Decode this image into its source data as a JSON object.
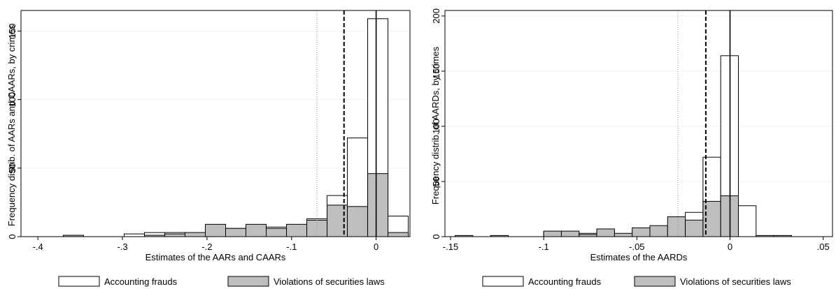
{
  "chart_data": [
    {
      "type": "bar",
      "subtype": "overlaid-histogram",
      "xlabel": "Estimates of the AARs and CAARs",
      "ylabel": "Frequency distrib. of AARs and CAARs, by crimes",
      "xlim": [
        -0.42,
        0.04
      ],
      "ylim": [
        0,
        165
      ],
      "xticks": [
        -0.4,
        -0.3,
        -0.2,
        -0.1,
        0
      ],
      "xtick_labels": [
        "-.4",
        "-.3",
        "-.2",
        "-.1",
        "0"
      ],
      "yticks": [
        0,
        50,
        100,
        150
      ],
      "ytick_labels": [
        "0",
        "50",
        "100",
        "150"
      ],
      "grid": true,
      "legend": "bottom",
      "bin_width": 0.024,
      "series": [
        {
          "name": "Accounting frauds",
          "color": "#ffffff",
          "bins": [
            {
              "x": -0.37,
              "value": 1
            },
            {
              "x": -0.298,
              "value": 2
            },
            {
              "x": -0.274,
              "value": 3
            },
            {
              "x": -0.25,
              "value": 3
            },
            {
              "x": -0.226,
              "value": 2
            },
            {
              "x": -0.202,
              "value": 6
            },
            {
              "x": -0.178,
              "value": 6
            },
            {
              "x": -0.154,
              "value": 6
            },
            {
              "x": -0.13,
              "value": 7
            },
            {
              "x": -0.106,
              "value": 7
            },
            {
              "x": -0.082,
              "value": 13
            },
            {
              "x": -0.058,
              "value": 30
            },
            {
              "x": -0.034,
              "value": 72
            },
            {
              "x": -0.01,
              "value": 159
            },
            {
              "x": 0.014,
              "value": 15
            }
          ]
        },
        {
          "name": "Violations of securities laws",
          "color": "#bebebe",
          "bins": [
            {
              "x": -0.37,
              "value": 1
            },
            {
              "x": -0.298,
              "value": 0
            },
            {
              "x": -0.274,
              "value": 1
            },
            {
              "x": -0.25,
              "value": 2
            },
            {
              "x": -0.226,
              "value": 3
            },
            {
              "x": -0.202,
              "value": 9
            },
            {
              "x": -0.178,
              "value": 6
            },
            {
              "x": -0.154,
              "value": 9
            },
            {
              "x": -0.13,
              "value": 6
            },
            {
              "x": -0.106,
              "value": 9
            },
            {
              "x": -0.082,
              "value": 12
            },
            {
              "x": -0.058,
              "value": 23
            },
            {
              "x": -0.034,
              "value": 22
            },
            {
              "x": -0.01,
              "value": 46
            },
            {
              "x": 0.014,
              "value": 3
            }
          ]
        }
      ],
      "reference_lines": [
        {
          "x": 0,
          "style": "solid"
        },
        {
          "x": -0.038,
          "style": "dashed"
        },
        {
          "x": -0.07,
          "style": "dotted"
        }
      ]
    },
    {
      "type": "bar",
      "subtype": "overlaid-histogram",
      "xlabel": "Estimates of the AARDs",
      "ylabel": "Frequency distrib. of AARDs, by crimes",
      "xlim": [
        -0.153,
        0.055
      ],
      "ylim": [
        0,
        205
      ],
      "xticks": [
        -0.15,
        -0.1,
        -0.05,
        0,
        0.05
      ],
      "xtick_labels": [
        "-.15",
        "-.1",
        "-.05",
        "0",
        ".05"
      ],
      "yticks": [
        0,
        50,
        100,
        150,
        200
      ],
      "ytick_labels": [
        "0",
        "50",
        "100",
        "150",
        "200"
      ],
      "grid": true,
      "legend": "bottom",
      "bin_width": 0.0095,
      "series": [
        {
          "name": "Accounting frauds",
          "color": "#ffffff",
          "bins": [
            {
              "x": -0.1475,
              "value": 1
            },
            {
              "x": -0.1285,
              "value": 1
            },
            {
              "x": -0.1,
              "value": 4
            },
            {
              "x": -0.0905,
              "value": 4
            },
            {
              "x": -0.081,
              "value": 3
            },
            {
              "x": -0.0715,
              "value": 6
            },
            {
              "x": -0.062,
              "value": 2
            },
            {
              "x": -0.0525,
              "value": 5
            },
            {
              "x": -0.043,
              "value": 7
            },
            {
              "x": -0.0335,
              "value": 10
            },
            {
              "x": -0.024,
              "value": 22
            },
            {
              "x": -0.0145,
              "value": 72
            },
            {
              "x": -0.005,
              "value": 164
            },
            {
              "x": 0.0045,
              "value": 28
            },
            {
              "x": 0.014,
              "value": 1
            },
            {
              "x": 0.0235,
              "value": 1
            }
          ]
        },
        {
          "name": "Violations of securities laws",
          "color": "#bebebe",
          "bins": [
            {
              "x": -0.1475,
              "value": 1
            },
            {
              "x": -0.1285,
              "value": 1
            },
            {
              "x": -0.1,
              "value": 5
            },
            {
              "x": -0.0905,
              "value": 5
            },
            {
              "x": -0.081,
              "value": 2
            },
            {
              "x": -0.0715,
              "value": 7
            },
            {
              "x": -0.062,
              "value": 3
            },
            {
              "x": -0.0525,
              "value": 8
            },
            {
              "x": -0.043,
              "value": 10
            },
            {
              "x": -0.0335,
              "value": 18
            },
            {
              "x": -0.024,
              "value": 15
            },
            {
              "x": -0.0145,
              "value": 32
            },
            {
              "x": -0.005,
              "value": 37
            },
            {
              "x": 0.0045,
              "value": 0
            },
            {
              "x": 0.014,
              "value": 1
            },
            {
              "x": 0.0235,
              "value": 1
            }
          ]
        }
      ],
      "reference_lines": [
        {
          "x": 0,
          "style": "solid"
        },
        {
          "x": -0.013,
          "style": "dashed"
        },
        {
          "x": -0.028,
          "style": "dotted"
        }
      ]
    }
  ]
}
